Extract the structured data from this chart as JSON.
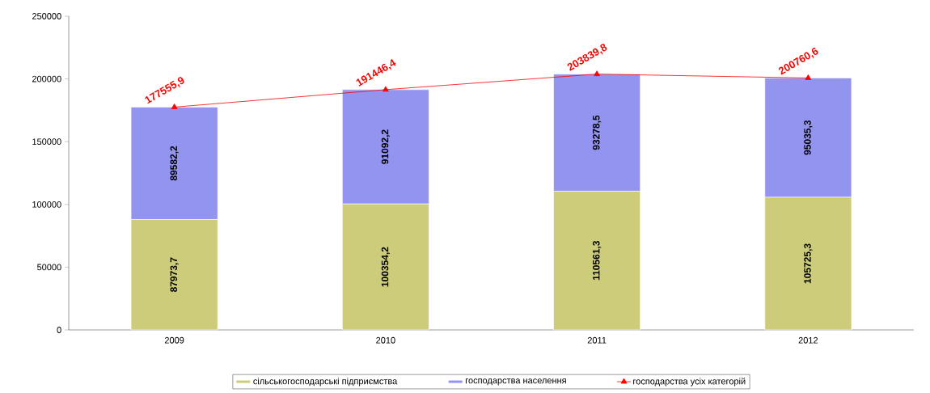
{
  "chart_data": {
    "type": "bar",
    "stacked": true,
    "categories": [
      "2009",
      "2010",
      "2011",
      "2012"
    ],
    "series": [
      {
        "name": "сільськогосподарські підприємства",
        "type": "bar",
        "color": "#cccc7a",
        "values": [
          87973.7,
          100354.2,
          110561.3,
          105725.3
        ],
        "value_labels": [
          "87973,7",
          "100354,2",
          "110561,3",
          "105725,3"
        ]
      },
      {
        "name": "господарства населення",
        "type": "bar",
        "color": "#9393f0",
        "values": [
          89582.2,
          91092.2,
          93278.5,
          95035.3
        ],
        "value_labels": [
          "89582,2",
          "91092,2",
          "93278,5",
          "95035,3"
        ]
      },
      {
        "name": "господарства усіх категорій",
        "type": "line",
        "color": "#ff0000",
        "marker": "triangle",
        "values": [
          177555.9,
          191446.4,
          203839.8,
          200760.6
        ],
        "value_labels": [
          "177555,9",
          "191446,4",
          "203839,8",
          "200760,6"
        ]
      }
    ],
    "ylim": [
      0,
      250000
    ],
    "yticks": [
      0,
      50000,
      100000,
      150000,
      200000,
      250000
    ],
    "legend": "bottom"
  }
}
